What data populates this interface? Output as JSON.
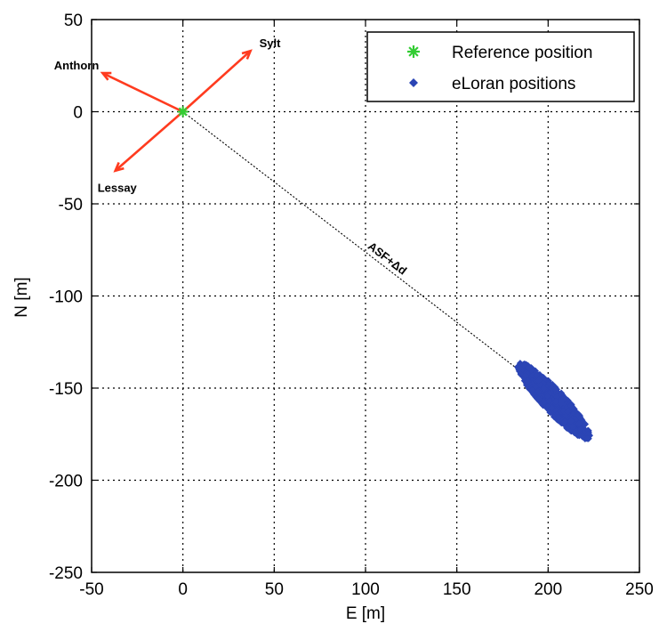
{
  "chart_data": {
    "type": "scatter",
    "title": "",
    "xlabel": "E [m]",
    "ylabel": "N [m]",
    "xlim": [
      -50,
      250
    ],
    "ylim": [
      -250,
      50
    ],
    "xticks": [
      -50,
      0,
      50,
      100,
      150,
      200,
      250
    ],
    "yticks": [
      50,
      0,
      -50,
      -100,
      -150,
      -200,
      -250
    ],
    "xtick_labels": [
      "-50",
      "0",
      "50",
      "100",
      "150",
      "200",
      "250"
    ],
    "ytick_labels": [
      "50",
      "0",
      "-50",
      "-100",
      "-150",
      "-200",
      "-250"
    ],
    "grid": true,
    "legend_position": "top-right",
    "series": [
      {
        "name": "Reference position",
        "marker": "star",
        "color": "#33cc33",
        "points": [
          [
            0,
            0
          ]
        ]
      },
      {
        "name": "eLoran positions",
        "marker": "diamond",
        "color": "#2b45b5",
        "cluster": {
          "center": [
            203,
            -157
          ],
          "spread_along_axis_m": 28,
          "spread_across_axis_m": 6,
          "axis_slope": -1.05,
          "endpoints": [
            [
              185,
              -135
            ],
            [
              221,
              -180
            ]
          ]
        }
      }
    ],
    "arrows": [
      {
        "label": "Sylt",
        "from": [
          0,
          0
        ],
        "to": [
          37,
          33
        ]
      },
      {
        "label": "Anthorn",
        "from": [
          0,
          0
        ],
        "to": [
          -44,
          21
        ]
      },
      {
        "label": "Lessay",
        "from": [
          0,
          0
        ],
        "to": [
          -37,
          -32
        ]
      }
    ],
    "annotations": [
      {
        "text": "ASF+Δd",
        "line_from": [
          0,
          0
        ],
        "line_to": [
          210,
          -160
        ]
      }
    ],
    "colors": {
      "arrow": "#ff3b1f",
      "grid": "#000000",
      "cluster": "#2b45b5",
      "reference": "#33cc33"
    }
  }
}
